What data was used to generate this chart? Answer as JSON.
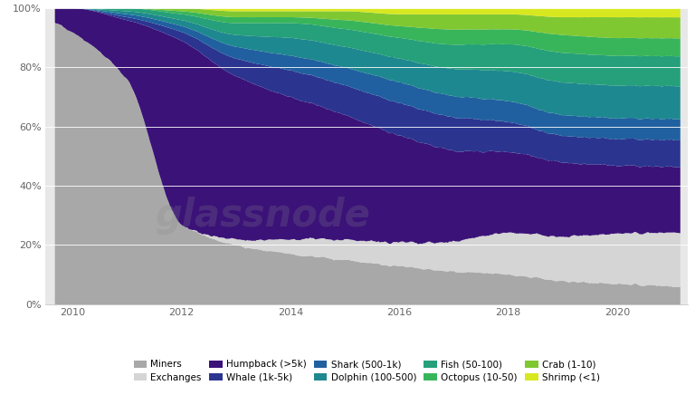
{
  "background_color": "#ffffff",
  "plot_bg_color": "#e8e8e8",
  "watermark": "glassnode",
  "xlim": [
    2009.5,
    2021.3
  ],
  "ylim": [
    0,
    100
  ],
  "yticks": [
    0,
    20,
    40,
    60,
    80,
    100
  ],
  "ytick_labels": [
    "0%",
    "20%",
    "40%",
    "60%",
    "80%",
    "100%"
  ],
  "xticks": [
    2010,
    2012,
    2014,
    2016,
    2018,
    2020
  ],
  "layers": [
    {
      "name": "Miners",
      "color": "#a8a8a8"
    },
    {
      "name": "Exchanges",
      "color": "#d5d5d5"
    },
    {
      "name": "Humpback (>5k)",
      "color": "#3b1278"
    },
    {
      "name": "Whale (1k-5k)",
      "color": "#2b3590"
    },
    {
      "name": "Shark (500-1k)",
      "color": "#2060a0"
    },
    {
      "name": "Dolphin (100-500)",
      "color": "#1e8890"
    },
    {
      "name": "Fish (50-100)",
      "color": "#25a07a"
    },
    {
      "name": "Octopus (10-50)",
      "color": "#38b55a"
    },
    {
      "name": "Crab (1-10)",
      "color": "#80c832"
    },
    {
      "name": "Shrimp (<1)",
      "color": "#d8e820"
    }
  ]
}
